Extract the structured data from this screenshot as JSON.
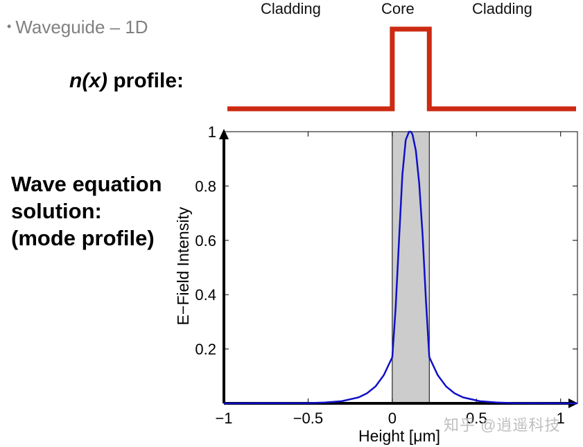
{
  "slide": {
    "bullet": "Waveguide – 1D",
    "index_profile_label_italic": "n(x)",
    "index_profile_label_rest": " profile:",
    "mode_label_lines": [
      "Wave equation",
      "solution:",
      "(mode profile)"
    ],
    "watermark": "知乎 @逍遥科技"
  },
  "index_profile": {
    "region_labels": [
      "Cladding",
      "Core",
      "Cladding"
    ],
    "core_start": 0,
    "core_end": 0.22,
    "color": "#cc2a12"
  },
  "chart_data": {
    "type": "line",
    "xlabel": "Height [μm]",
    "ylabel": "E−Field Intensity",
    "xlim": [
      -1,
      1.1
    ],
    "ylim": [
      0,
      1
    ],
    "x_ticks": [
      -1,
      -0.5,
      0,
      0.5,
      1
    ],
    "x_tick_labels": [
      "−1",
      "−0.5",
      "0",
      "0.5",
      "1"
    ],
    "y_ticks": [
      0.2,
      0.4,
      0.6,
      0.8,
      1
    ],
    "y_tick_labels": [
      "0.2",
      "0.4",
      "0.6",
      "0.8",
      "1"
    ],
    "core_shading": {
      "x_start": 0,
      "x_end": 0.22,
      "color": "#cccccc"
    },
    "series": [
      {
        "color": "#1010c8",
        "x": [
          -1,
          -0.5,
          -0.4,
          -0.3,
          -0.2,
          -0.15,
          -0.1,
          -0.05,
          0,
          0.02,
          0.04,
          0.06,
          0.08,
          0.1,
          0.11,
          0.12,
          0.14,
          0.16,
          0.18,
          0.2,
          0.22,
          0.27,
          0.32,
          0.37,
          0.42,
          0.52,
          0.62,
          0.72,
          1.1
        ],
        "values": [
          0,
          0.001,
          0.003,
          0.008,
          0.022,
          0.037,
          0.062,
          0.104,
          0.17,
          0.35,
          0.6,
          0.84,
          0.97,
          1.0,
          1.0,
          0.99,
          0.93,
          0.81,
          0.62,
          0.38,
          0.17,
          0.104,
          0.062,
          0.037,
          0.022,
          0.008,
          0.003,
          0.001,
          0
        ]
      }
    ]
  }
}
